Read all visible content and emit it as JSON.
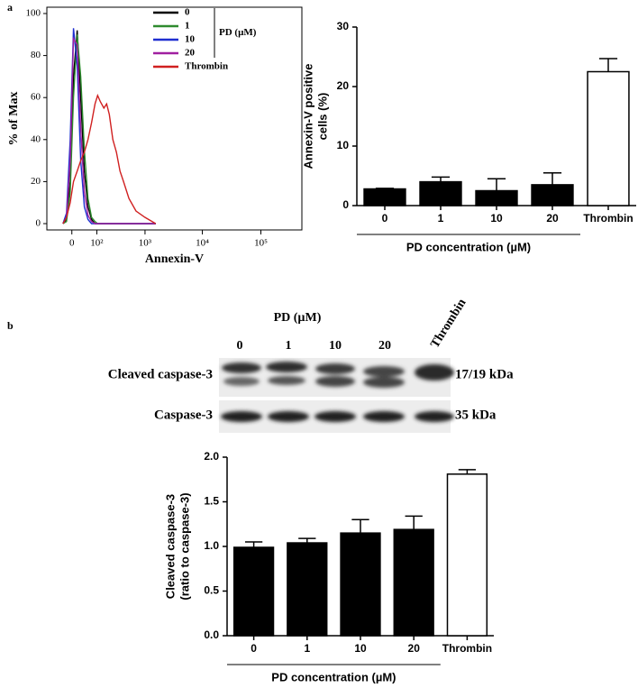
{
  "chart_data": [
    {
      "type": "line",
      "panel": "a",
      "xlabel": "Annexin-V",
      "ylabel": "% of Max",
      "xscale": "symlog",
      "x": [
        -25,
        -14,
        -4,
        4,
        14,
        25,
        38,
        53,
        70,
        89,
        105,
        124,
        151,
        175,
        201,
        240,
        285,
        337,
        396,
        504,
        684,
        996,
        1551
      ],
      "series": [
        {
          "name": "0",
          "color": "#000000",
          "values": [
            0,
            2,
            20,
            70,
            92,
            60,
            25,
            8,
            2,
            0,
            0,
            0,
            0,
            0,
            0,
            0,
            0,
            0,
            0,
            0,
            0,
            0,
            0
          ]
        },
        {
          "name": "1",
          "color": "#2e8b2e",
          "values": [
            0,
            1,
            15,
            60,
            90,
            70,
            35,
            12,
            3,
            1,
            0,
            0,
            0,
            0,
            0,
            0,
            0,
            0,
            0,
            0,
            0,
            0,
            0
          ]
        },
        {
          "name": "10",
          "color": "#1f2fd0",
          "values": [
            0,
            5,
            40,
            93,
            75,
            30,
            8,
            2,
            0,
            0,
            0,
            0,
            0,
            0,
            0,
            0,
            0,
            0,
            0,
            0,
            0,
            0,
            0
          ]
        },
        {
          "name": "20",
          "color": "#a020a0",
          "values": [
            0,
            3,
            30,
            88,
            85,
            45,
            15,
            4,
            1,
            0,
            0,
            0,
            0,
            0,
            0,
            0,
            0,
            0,
            0,
            0,
            0,
            0,
            0
          ]
        },
        {
          "name": "Thrombin",
          "color": "#d02020",
          "values": [
            0,
            3,
            10,
            20,
            25,
            30,
            34,
            40,
            48,
            57,
            61,
            58,
            55,
            57,
            52,
            40,
            34,
            25,
            20,
            12,
            6,
            3,
            0
          ]
        }
      ],
      "annotation": "PD (µM)",
      "legend": "upper right",
      "xlim": [
        -100,
        500000
      ],
      "xticks": [
        0,
        {
          "value": 100,
          "label": "10²"
        },
        {
          "value": 1000,
          "label": "10³"
        },
        {
          "value": 10000,
          "label": "10⁴"
        },
        {
          "value": 100000,
          "label": "10⁵"
        }
      ],
      "ylim": [
        -3,
        103
      ],
      "yticks": [
        0,
        20,
        40,
        60,
        80,
        100
      ]
    },
    {
      "type": "bar",
      "ylabel": [
        "Annexin-V positive",
        "cells (%)"
      ],
      "xlabel": "PD concentration (µM)",
      "categories": [
        "0",
        "1",
        "10",
        "20",
        "Thrombin"
      ],
      "values": [
        2.8,
        4.0,
        2.5,
        3.5,
        22.5
      ],
      "errors": [
        0.1,
        0.8,
        2.0,
        2.0,
        2.2
      ],
      "colors": [
        "#000000",
        "#000000",
        "#000000",
        "#000000",
        "#ffffff"
      ],
      "ylim": [
        0,
        30
      ],
      "yticks": [
        0,
        10,
        20,
        30
      ]
    },
    {
      "type": "bar",
      "ylabel": [
        "Cleaved caspase-3",
        "(ratio to caspase-3)"
      ],
      "xlabel": "PD concentration (µM)",
      "categories": [
        "0",
        "1",
        "10",
        "20",
        "Thrombin"
      ],
      "values": [
        0.99,
        1.04,
        1.15,
        1.19,
        1.81
      ],
      "errors": [
        0.06,
        0.05,
        0.15,
        0.15,
        0.05
      ],
      "colors": [
        "#000000",
        "#000000",
        "#000000",
        "#000000",
        "#ffffff"
      ],
      "ylim": [
        0,
        2
      ],
      "yticks": [
        {
          "value": 0,
          "label": "0.0"
        },
        {
          "value": 0.5,
          "label": "0.5"
        },
        {
          "value": 1,
          "label": "1.0"
        },
        {
          "value": 1.5,
          "label": "1.5"
        },
        {
          "value": 2,
          "label": "2.0"
        }
      ]
    }
  ],
  "blot": {
    "panel": "b",
    "title": "PD (µM)",
    "lanes": [
      "0",
      "1",
      "10",
      "20",
      "Thrombin"
    ],
    "rows": [
      {
        "label": "Cleaved caspase-3",
        "size": "17/19 kDa"
      },
      {
        "label": "Caspase-3",
        "size": "35 kDa"
      }
    ]
  }
}
